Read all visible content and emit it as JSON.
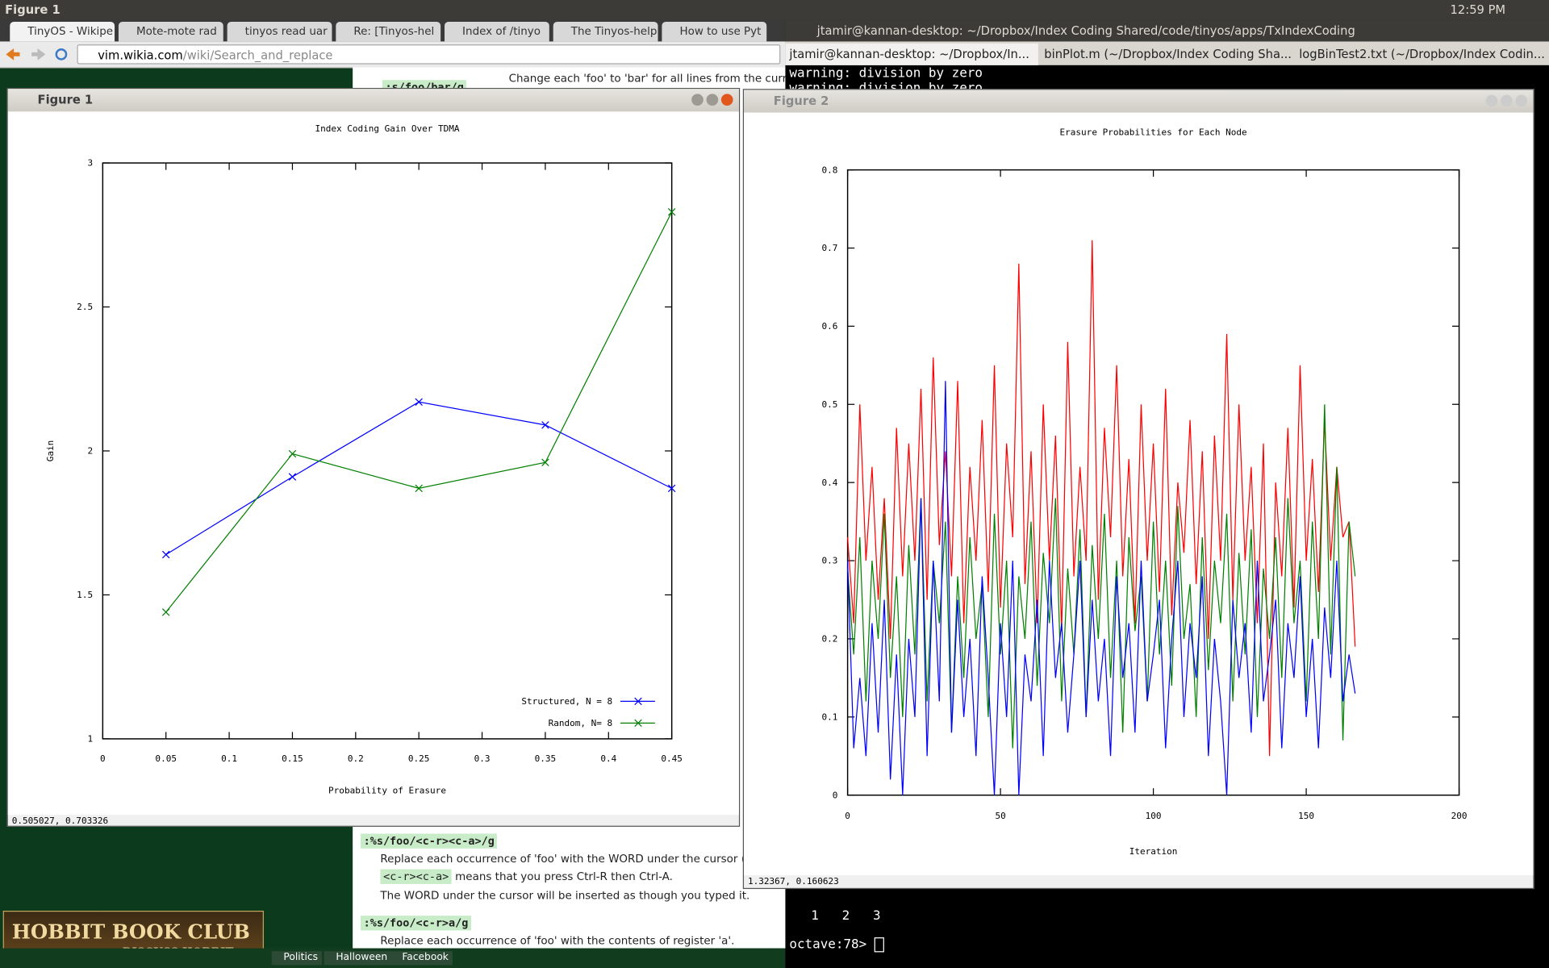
{
  "panel": {
    "title": "Figure 1",
    "clock": "12:59 PM"
  },
  "browser": {
    "tabs": [
      "TinyOS - Wikipe",
      "Mote-mote rad",
      "tinyos read uar",
      "Re: [Tinyos-hel",
      "Index of /tinyo",
      "The Tinyos-help",
      "How to use Pyt"
    ],
    "url_host": "vim.wikia.com",
    "url_path": "/wiki/Search_and_replace",
    "content": {
      "cmd1": ":s/foo/bar/g",
      "desc1": "Change each 'foo' to 'bar' for all lines from the current line (...",
      "cmd2": ":%s/foo/<c-r><c-a>/g",
      "desc2a": "Replace each occurrence of 'foo' with the WORD under the cursor (delimited b",
      "desc2b_code": "<c-r><c-a>",
      "desc2b": " means that you press Ctrl-R then Ctrl-A.",
      "desc2c": "The WORD under the cursor will be inserted as though you typed it.",
      "cmd3": ":%s/foo/<c-r>a/g",
      "desc3": "Replace each occurrence of 'foo' with the contents of register 'a'."
    },
    "banner": {
      "line1": "HOBBIT BOOK CLUB",
      "line2": "DISCUSS HOBBIT"
    },
    "bookmarks": [
      "Politics",
      "Halloween",
      "Facebook"
    ]
  },
  "terminal": {
    "title": "jtamir@kannan-desktop: ~/Dropbox/Index Coding Shared/code/tinyos/apps/TxIndexCoding",
    "tabs": [
      "jtamir@kannan-desktop: ~/Dropbox/In...",
      "binPlot.m (~/Dropbox/Index Coding Sha...",
      "logBinTest2.txt (~/Dropbox/Index Codin..."
    ],
    "lines": [
      "warning: division by zero",
      "warning: division by zero"
    ],
    "output": "1   2   3",
    "prompt": "octave:78> "
  },
  "windows": [
    {
      "title": "Figure 1",
      "status": "0.505027,  0.703326"
    },
    {
      "title": "Figure 2",
      "status": "1.32367,  0.160623"
    }
  ],
  "chart_data": [
    {
      "type": "line",
      "title": "Index Coding Gain Over TDMA",
      "xlabel": "Probability of Erasure",
      "ylabel": "Gain",
      "x": [
        0.05,
        0.15,
        0.25,
        0.35,
        0.45
      ],
      "series": [
        {
          "name": "Structured, N = 8",
          "color": "#0000ff",
          "marker": "x",
          "values": [
            1.64,
            1.91,
            2.17,
            2.09,
            1.87
          ]
        },
        {
          "name": "Random, N= 8",
          "color": "#008000",
          "marker": "x",
          "values": [
            1.44,
            1.99,
            1.87,
            1.96,
            2.83
          ]
        }
      ],
      "xlim": [
        0,
        0.45
      ],
      "ylim": [
        1,
        3
      ],
      "xticks": [
        0,
        0.05,
        0.1,
        0.15,
        0.2,
        0.25,
        0.3,
        0.35,
        0.4,
        0.45
      ],
      "yticks": [
        1,
        1.5,
        2,
        2.5,
        3
      ],
      "legend": "lower right"
    },
    {
      "type": "line",
      "title": "Erasure Probabilities for Each Node",
      "xlabel": "Iteration",
      "x": [
        0,
        2,
        4,
        6,
        8,
        10,
        12,
        14,
        16,
        18,
        20,
        22,
        24,
        26,
        28,
        30,
        32,
        34,
        36,
        38,
        40,
        42,
        44,
        46,
        48,
        50,
        52,
        54,
        56,
        58,
        60,
        62,
        64,
        66,
        68,
        70,
        72,
        74,
        76,
        78,
        80,
        82,
        84,
        86,
        88,
        90,
        92,
        94,
        96,
        98,
        100,
        102,
        104,
        106,
        108,
        110,
        112,
        114,
        116,
        118,
        120,
        122,
        124,
        126,
        128,
        130,
        132,
        134,
        136,
        138,
        140,
        142,
        144,
        146,
        148,
        150,
        152,
        154,
        156,
        158,
        160,
        162,
        164,
        166
      ],
      "series": [
        {
          "color": "#ff0000",
          "values": [
            0.33,
            0.22,
            0.5,
            0.3,
            0.42,
            0.25,
            0.38,
            0.2,
            0.47,
            0.28,
            0.45,
            0.3,
            0.52,
            0.25,
            0.56,
            0.32,
            0.44,
            0.28,
            0.53,
            0.22,
            0.42,
            0.3,
            0.48,
            0.26,
            0.55,
            0.24,
            0.45,
            0.33,
            0.68,
            0.27,
            0.44,
            0.22,
            0.5,
            0.3,
            0.46,
            0.21,
            0.58,
            0.28,
            0.42,
            0.3,
            0.71,
            0.25,
            0.47,
            0.33,
            0.55,
            0.28,
            0.43,
            0.22,
            0.5,
            0.3,
            0.45,
            0.26,
            0.52,
            0.23,
            0.4,
            0.31,
            0.48,
            0.27,
            0.44,
            0.2,
            0.46,
            0.3,
            0.59,
            0.25,
            0.5,
            0.3,
            0.42,
            0.22,
            0.45,
            0.05,
            0.4,
            0.28,
            0.47,
            0.24,
            0.55,
            0.3,
            0.43,
            0.26,
            0.48,
            0.3,
            0.42,
            0.33,
            0.35,
            0.19
          ]
        },
        {
          "color": "#008000",
          "values": [
            0.29,
            0.18,
            0.33,
            0.12,
            0.3,
            0.2,
            0.36,
            0.15,
            0.28,
            0.1,
            0.32,
            0.18,
            0.38,
            0.12,
            0.3,
            0.22,
            0.35,
            0.08,
            0.28,
            0.15,
            0.33,
            0.2,
            0.27,
            0.1,
            0.36,
            0.18,
            0.3,
            0.06,
            0.28,
            0.2,
            0.35,
            0.14,
            0.31,
            0.22,
            0.38,
            0.12,
            0.29,
            0.18,
            0.34,
            0.1,
            0.32,
            0.2,
            0.36,
            0.15,
            0.3,
            0.08,
            0.33,
            0.21,
            0.28,
            0.12,
            0.35,
            0.18,
            0.3,
            0.14,
            0.37,
            0.2,
            0.27,
            0.1,
            0.33,
            0.16,
            0.3,
            0.22,
            0.36,
            0.12,
            0.31,
            0.18,
            0.34,
            0.1,
            0.29,
            0.2,
            0.33,
            0.15,
            0.38,
            0.22,
            0.3,
            0.12,
            0.35,
            0.2,
            0.5,
            0.18,
            0.42,
            0.07,
            0.35,
            0.28
          ]
        },
        {
          "color": "#0000ff",
          "values": [
            0.3,
            0.06,
            0.15,
            0.05,
            0.22,
            0.08,
            0.25,
            0.02,
            0.18,
            0.0,
            0.2,
            0.1,
            0.38,
            0.05,
            0.3,
            0.12,
            0.53,
            0.08,
            0.25,
            0.1,
            0.2,
            0.05,
            0.28,
            0.15,
            0.0,
            0.22,
            0.1,
            0.3,
            0.0,
            0.18,
            0.12,
            0.25,
            0.05,
            0.3,
            0.15,
            0.22,
            0.08,
            0.18,
            0.3,
            0.1,
            0.25,
            0.12,
            0.2,
            0.05,
            0.28,
            0.15,
            0.22,
            0.08,
            0.3,
            0.12,
            0.18,
            0.25,
            0.06,
            0.2,
            0.3,
            0.1,
            0.22,
            0.15,
            0.28,
            0.05,
            0.2,
            0.12,
            0.0,
            0.25,
            0.15,
            0.22,
            0.08,
            0.3,
            0.12,
            0.18,
            0.25,
            0.06,
            0.22,
            0.15,
            0.28,
            0.1,
            0.2,
            0.06,
            0.24,
            0.15,
            0.3,
            0.12,
            0.18,
            0.13
          ]
        }
      ],
      "xlim": [
        0,
        200
      ],
      "ylim": [
        0,
        0.8
      ],
      "xticks": [
        0,
        50,
        100,
        150,
        200
      ],
      "yticks": [
        0,
        0.1,
        0.2,
        0.3,
        0.4,
        0.5,
        0.6,
        0.7,
        0.8
      ]
    }
  ]
}
